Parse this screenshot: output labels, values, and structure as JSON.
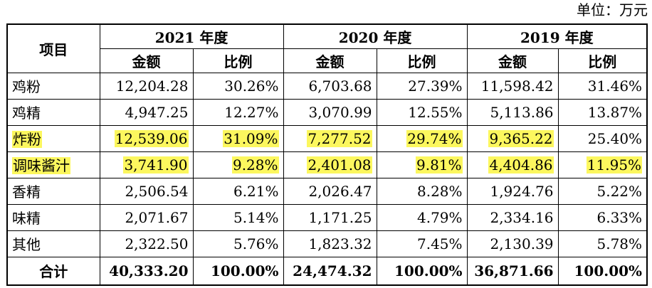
{
  "unit_label": "单位：万元",
  "header": {
    "item": "项目",
    "years": [
      "2021 年度",
      "2020 年度",
      "2019 年度"
    ],
    "amount": "金额",
    "ratio": "比例"
  },
  "rows": [
    {
      "item": "鸡粉",
      "cells": [
        "12,204.28",
        "30.26%",
        "6,703.68",
        "27.39%",
        "11,598.42",
        "31.46%"
      ],
      "hl_item": false,
      "hl": [
        false,
        false,
        false,
        false,
        false,
        false
      ]
    },
    {
      "item": "鸡精",
      "cells": [
        "4,947.25",
        "12.27%",
        "3,070.99",
        "12.55%",
        "5,113.86",
        "13.87%"
      ],
      "hl_item": false,
      "hl": [
        false,
        false,
        false,
        false,
        false,
        false
      ]
    },
    {
      "item": "炸粉",
      "cells": [
        "12,539.06",
        "31.09%",
        "7,277.52",
        "29.74%",
        "9,365.22",
        "25.40%"
      ],
      "hl_item": true,
      "hl": [
        true,
        true,
        true,
        true,
        true,
        false
      ]
    },
    {
      "item": "调味酱汁",
      "cells": [
        "3,741.90",
        "9.28%",
        "2,401.08",
        "9.81%",
        "4,404.86",
        "11.95%"
      ],
      "hl_item": true,
      "hl": [
        true,
        true,
        true,
        true,
        true,
        true
      ]
    },
    {
      "item": "香精",
      "cells": [
        "2,506.54",
        "6.21%",
        "2,026.47",
        "8.28%",
        "1,924.76",
        "5.22%"
      ],
      "hl_item": false,
      "hl": [
        false,
        false,
        false,
        false,
        false,
        false
      ]
    },
    {
      "item": "味精",
      "cells": [
        "2,071.67",
        "5.14%",
        "1,171.25",
        "4.79%",
        "2,334.16",
        "6.33%"
      ],
      "hl_item": false,
      "hl": [
        false,
        false,
        false,
        false,
        false,
        false
      ]
    },
    {
      "item": "其他",
      "cells": [
        "2,322.50",
        "5.76%",
        "1,823.32",
        "7.45%",
        "2,130.39",
        "5.78%"
      ],
      "hl_item": false,
      "hl": [
        false,
        false,
        false,
        false,
        false,
        false
      ]
    }
  ],
  "total": {
    "item": "合计",
    "cells": [
      "40,333.20",
      "100.00%",
      "24,474.32",
      "100.00%",
      "36,871.66",
      "100.00%"
    ]
  },
  "highlight_color": "#fcf75e"
}
